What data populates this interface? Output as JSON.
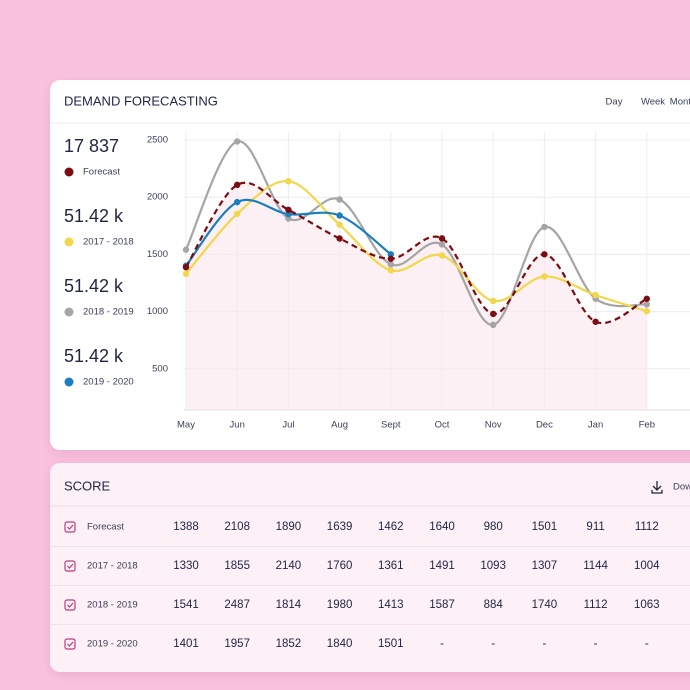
{
  "chart_data": {
    "type": "line",
    "title": "DEMAND FORECASTING",
    "tabs": [
      "Day",
      "Week",
      "Month"
    ],
    "categories": [
      "May",
      "Jun",
      "Jul",
      "Aug",
      "Sept",
      "Oct",
      "Nov",
      "Dec",
      "Jan",
      "Feb"
    ],
    "series": [
      {
        "name": "Forecast",
        "color": "#7b0c12",
        "dashed": true,
        "values": [
          1388,
          2108,
          1890,
          1639,
          1462,
          1640,
          980,
          1501,
          911,
          1112
        ]
      },
      {
        "name": "2017 - 2018",
        "color": "#f2d64b",
        "values": [
          1330,
          1855,
          2140,
          1760,
          1361,
          1491,
          1093,
          1307,
          1144,
          1004
        ]
      },
      {
        "name": "2018 - 2019",
        "color": "#a5a5a5",
        "values": [
          1541,
          2487,
          1814,
          1980,
          1413,
          1587,
          884,
          1740,
          1112,
          1063
        ]
      },
      {
        "name": "2019 - 2020",
        "color": "#1a7fc1",
        "values": [
          1401,
          1957,
          1852,
          1840,
          1501,
          null,
          null,
          null,
          null,
          null
        ]
      }
    ],
    "totals": [
      "17 837",
      "51.42 k",
      "51.42 k",
      "51.42 k"
    ],
    "ylim": [
      0,
      2500
    ],
    "yticks": [
      500,
      1000,
      1500,
      2000,
      2500
    ],
    "grid": true
  },
  "score": {
    "title": "SCORE",
    "action": "Download",
    "rows": [
      {
        "label": "Forecast",
        "cells": [
          1388,
          2108,
          1890,
          1639,
          1462,
          1640,
          980,
          1501,
          911,
          1112
        ]
      },
      {
        "label": "2017 - 2018",
        "cells": [
          1330,
          1855,
          2140,
          1760,
          1361,
          1491,
          1093,
          1307,
          1144,
          1004
        ]
      },
      {
        "label": "2018 - 2019",
        "cells": [
          1541,
          2487,
          1814,
          1980,
          1413,
          1587,
          884,
          1740,
          1112,
          1063
        ]
      },
      {
        "label": "2019 - 2020",
        "cells": [
          1401,
          1957,
          1852,
          1840,
          1501,
          "-",
          "-",
          "-",
          "-",
          "-"
        ]
      }
    ]
  }
}
